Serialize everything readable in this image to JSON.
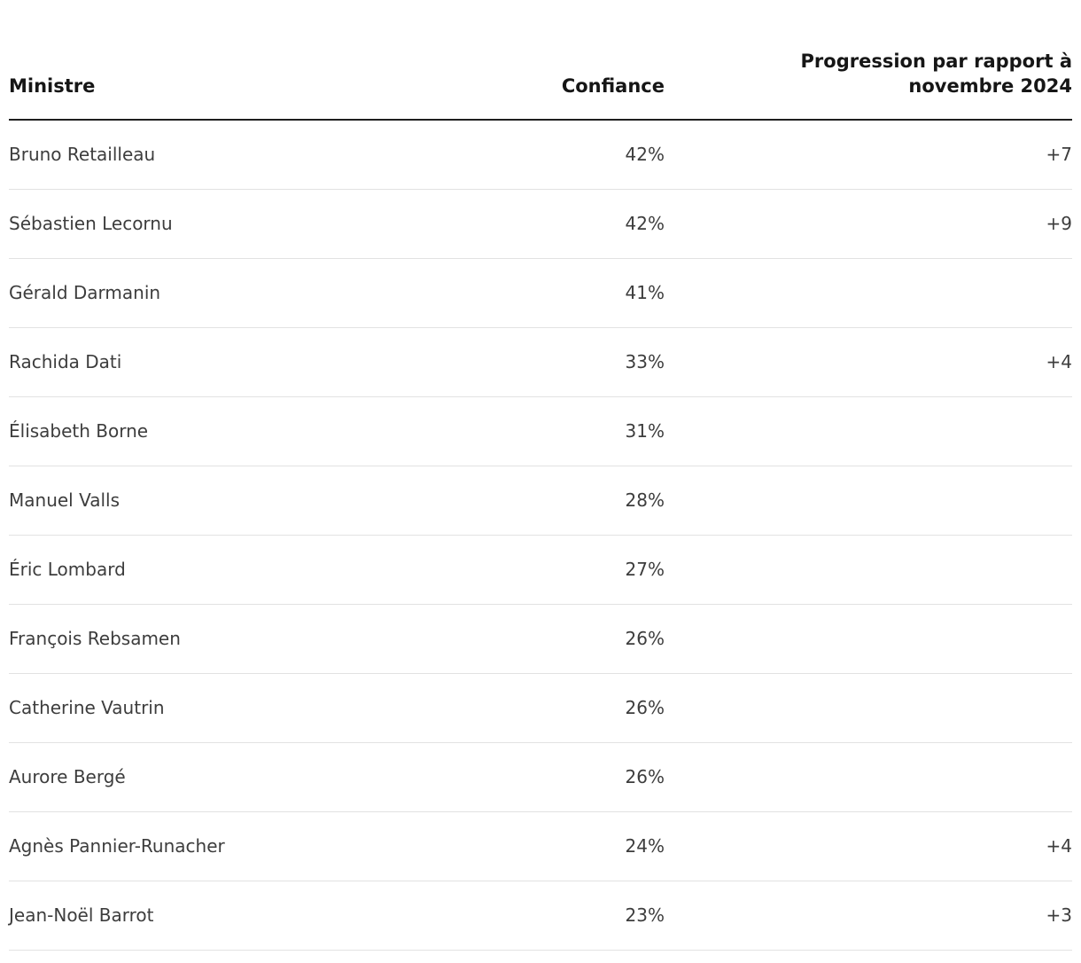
{
  "table": {
    "headers": {
      "ministre": "Ministre",
      "confiance": "Confiance",
      "progression_line1": "Progression par rapport à",
      "progression_line2": "novembre 2024"
    },
    "rows": [
      {
        "ministre": "Bruno Retailleau",
        "confiance": "42%",
        "progression": "+7"
      },
      {
        "ministre": "Sébastien Lecornu",
        "confiance": "42%",
        "progression": "+9"
      },
      {
        "ministre": "Gérald Darmanin",
        "confiance": "41%",
        "progression": ""
      },
      {
        "ministre": "Rachida Dati",
        "confiance": "33%",
        "progression": "+4"
      },
      {
        "ministre": "Élisabeth Borne",
        "confiance": "31%",
        "progression": ""
      },
      {
        "ministre": "Manuel Valls",
        "confiance": "28%",
        "progression": ""
      },
      {
        "ministre": "Éric Lombard",
        "confiance": "27%",
        "progression": ""
      },
      {
        "ministre": "François Rebsamen",
        "confiance": "26%",
        "progression": ""
      },
      {
        "ministre": "Catherine Vautrin",
        "confiance": "26%",
        "progression": ""
      },
      {
        "ministre": "Aurore Bergé",
        "confiance": "26%",
        "progression": ""
      },
      {
        "ministre": "Agnès Pannier-Runacher",
        "confiance": "24%",
        "progression": "+4"
      },
      {
        "ministre": "Jean-Noël Barrot",
        "confiance": "23%",
        "progression": "+3"
      }
    ]
  },
  "chart_data": {
    "type": "table",
    "title": "",
    "columns": [
      "Ministre",
      "Confiance",
      "Progression par rapport à novembre 2024"
    ],
    "rows": [
      [
        "Bruno Retailleau",
        "42%",
        "+7"
      ],
      [
        "Sébastien Lecornu",
        "42%",
        "+9"
      ],
      [
        "Gérald Darmanin",
        "41%",
        ""
      ],
      [
        "Rachida Dati",
        "33%",
        "+4"
      ],
      [
        "Élisabeth Borne",
        "31%",
        ""
      ],
      [
        "Manuel Valls",
        "28%",
        ""
      ],
      [
        "Éric Lombard",
        "27%",
        ""
      ],
      [
        "François Rebsamen",
        "26%",
        ""
      ],
      [
        "Catherine Vautrin",
        "26%",
        ""
      ],
      [
        "Aurore Bergé",
        "26%",
        ""
      ],
      [
        "Agnès Pannier-Runacher",
        "24%",
        "+4"
      ],
      [
        "Jean-Noël Barrot",
        "23%",
        "+3"
      ]
    ],
    "confiance_values_pct": [
      42,
      42,
      41,
      33,
      31,
      28,
      27,
      26,
      26,
      26,
      24,
      23
    ],
    "progression_values": [
      7,
      9,
      null,
      4,
      null,
      null,
      null,
      null,
      null,
      null,
      4,
      3
    ]
  },
  "colors": {
    "background": "#ffffff",
    "header_text": "#161616",
    "body_text": "#3d3d3d",
    "header_border": "#1f1f1f",
    "row_border": "#e2e2e2"
  }
}
